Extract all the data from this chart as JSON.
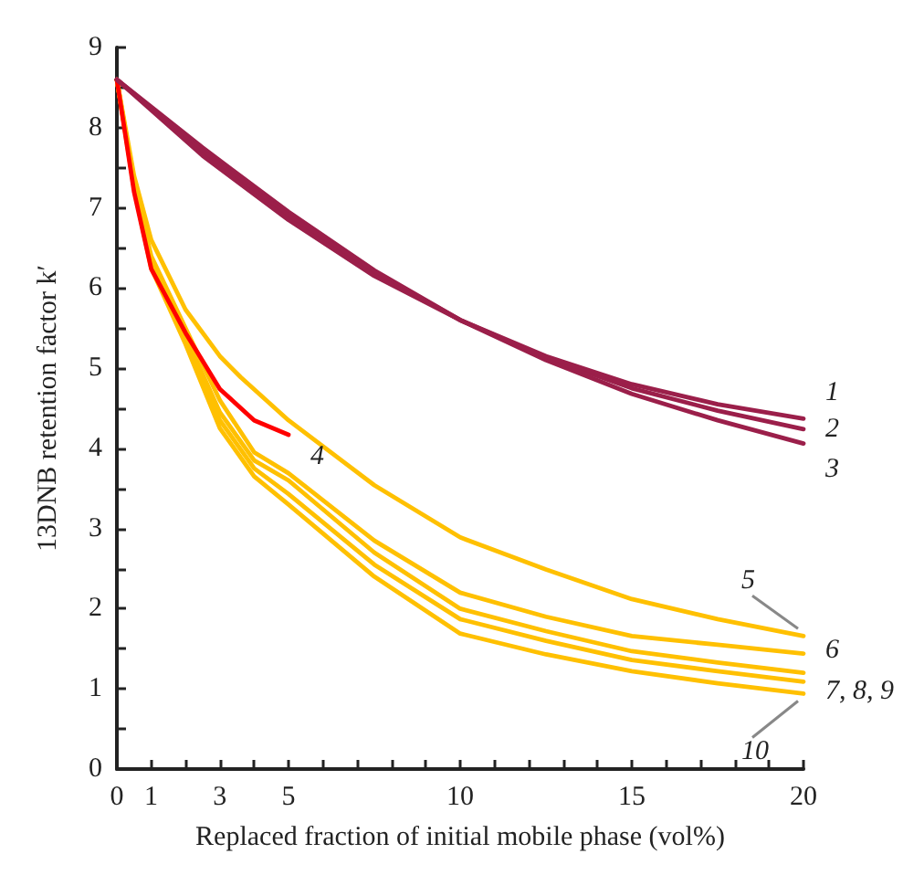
{
  "chart_data": {
    "type": "line",
    "xlabel": "Replaced fraction of initial mobile phase (vol%)",
    "ylabel": "13DNB retention factor k′",
    "xlim": [
      0,
      20
    ],
    "ylim": [
      0,
      9
    ],
    "xticks": [
      0,
      1,
      {
        "value": 2,
        "label": null
      },
      3,
      {
        "value": 4,
        "label": null
      },
      5,
      {
        "value": 6,
        "label": null
      },
      {
        "value": 7,
        "label": null
      },
      {
        "value": 8,
        "label": null
      },
      {
        "value": 9,
        "label": null
      },
      10,
      {
        "value": 11,
        "label": null
      },
      {
        "value": 12,
        "label": null
      },
      {
        "value": 13,
        "label": null
      },
      {
        "value": 14,
        "label": null
      },
      15,
      {
        "value": 16,
        "label": null
      },
      {
        "value": 17,
        "label": null
      },
      {
        "value": 18,
        "label": null
      },
      {
        "value": 19,
        "label": null
      },
      20
    ],
    "yticks": [
      0,
      {
        "value": 0.5,
        "label": null
      },
      1,
      {
        "value": 1.5,
        "label": null
      },
      2,
      {
        "value": 2.5,
        "label": null
      },
      3,
      {
        "value": 3.5,
        "label": null
      },
      4,
      {
        "value": 4.5,
        "label": null
      },
      5,
      {
        "value": 5.5,
        "label": null
      },
      6,
      {
        "value": 6.5,
        "label": null
      },
      7,
      {
        "value": 7.5,
        "label": null
      },
      8,
      {
        "value": 8.5,
        "label": null
      },
      9
    ],
    "grid": false,
    "legend": false,
    "marker": "none",
    "line_style": "solid",
    "series": [
      {
        "name": "1",
        "color": "#9b1f4a",
        "x": [
          0,
          2.5,
          5,
          7.5,
          10,
          12.5,
          15,
          17.5,
          20
        ],
        "values": [
          8.6,
          7.65,
          6.85,
          6.15,
          5.6,
          5.15,
          4.8,
          4.55,
          4.37
        ]
      },
      {
        "name": "2",
        "color": "#9b1f4a",
        "x": [
          0,
          2.5,
          5,
          7.5,
          10,
          12.5,
          15,
          17.5,
          20
        ],
        "values": [
          8.6,
          7.7,
          6.9,
          6.2,
          5.6,
          5.13,
          4.75,
          4.47,
          4.24
        ]
      },
      {
        "name": "3",
        "color": "#9b1f4a",
        "x": [
          0,
          2.5,
          5,
          7.5,
          10,
          12.5,
          15,
          17.5,
          20
        ],
        "values": [
          8.6,
          7.75,
          6.95,
          6.22,
          5.6,
          5.1,
          4.68,
          4.35,
          4.06
        ]
      },
      {
        "name": "4",
        "color": "#ff0000",
        "x": [
          0,
          0.5,
          1,
          2,
          3,
          4,
          5
        ],
        "values": [
          8.6,
          7.2,
          6.24,
          5.44,
          4.74,
          4.35,
          4.17
        ]
      },
      {
        "name": "5",
        "color": "#ffc000",
        "x": [
          0,
          0.5,
          1,
          2,
          3,
          3.6,
          5,
          7.5,
          10,
          12.5,
          15,
          17.5,
          20
        ],
        "values": [
          8.6,
          7.4,
          6.6,
          5.73,
          5.15,
          4.89,
          4.35,
          3.54,
          2.89,
          2.49,
          2.12,
          1.87,
          1.66
        ]
      },
      {
        "name": "6",
        "color": "#ffc000",
        "x": [
          0,
          0.5,
          1,
          2,
          3,
          4,
          5,
          7.5,
          10,
          12.5,
          15,
          17.5,
          20
        ],
        "values": [
          8.6,
          7.3,
          6.4,
          5.5,
          4.6,
          3.95,
          3.69,
          2.85,
          2.2,
          1.9,
          1.66,
          1.55,
          1.44
        ]
      },
      {
        "name": "7, 8, 9",
        "color": "#ffc000",
        "x": [
          0,
          0.5,
          1,
          2,
          3,
          4,
          5,
          7.5,
          10,
          12.5,
          15,
          17.5,
          20
        ],
        "values": [
          8.6,
          7.3,
          6.35,
          5.4,
          4.45,
          3.85,
          3.6,
          2.7,
          2.0,
          1.72,
          1.47,
          1.33,
          1.2
        ]
      },
      {
        "color": "#ffc000",
        "x": [
          0,
          0.5,
          1,
          2,
          3,
          4,
          5,
          7.5,
          10,
          12.5,
          15,
          17.5,
          20
        ],
        "values": [
          8.6,
          7.3,
          6.3,
          5.35,
          4.35,
          3.75,
          3.43,
          2.55,
          1.87,
          1.6,
          1.36,
          1.22,
          1.09
        ]
      },
      {
        "name": "10",
        "color": "#ffc000",
        "x": [
          0,
          0.5,
          1,
          2,
          3,
          4,
          5,
          7.5,
          10,
          12.5,
          15,
          17.5,
          20
        ],
        "values": [
          8.6,
          7.25,
          6.25,
          5.3,
          4.25,
          3.65,
          3.3,
          2.4,
          1.69,
          1.43,
          1.22,
          1.07,
          0.94
        ]
      }
    ]
  }
}
